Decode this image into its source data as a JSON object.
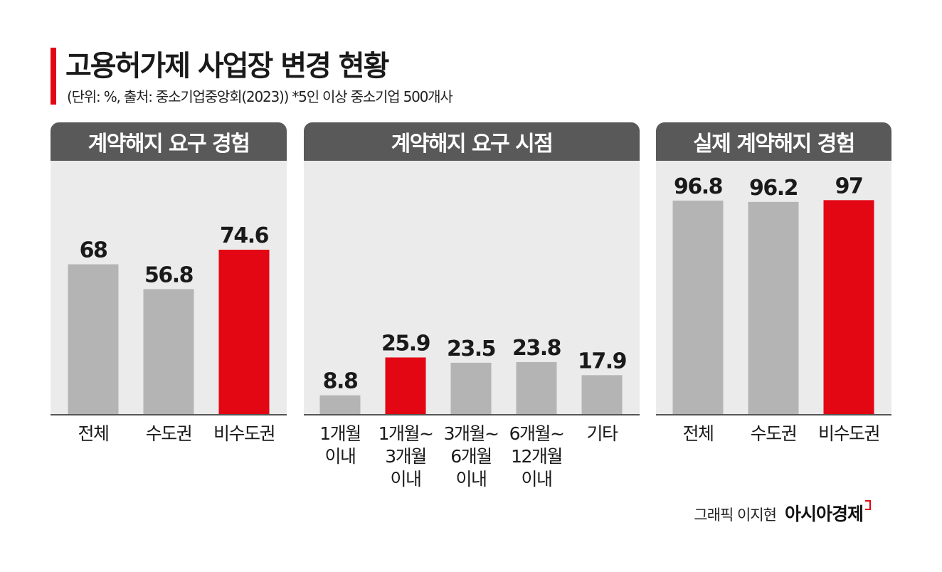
{
  "title": "고용허가제 사업장 변경 현황",
  "subtitle": "(단위: %, 출처: 중소기업중앙회(2023))  *5인 이상 중소기업 500개사",
  "credit": "그래픽 이지현",
  "brand": "아시아경제",
  "colors": {
    "gray_bar": "#b4b4b4",
    "red_bar": "#e30613",
    "panel_bg": "#ebebeb",
    "header_bg": "#595959"
  },
  "chart_data": [
    {
      "type": "bar",
      "title": "계약해지 요구 경험",
      "categories": [
        "전체",
        "수도권",
        "비수도권"
      ],
      "values": [
        68,
        56.8,
        74.6
      ],
      "value_labels": [
        "68",
        "56.8",
        "74.6"
      ],
      "highlight": [
        false,
        false,
        true
      ],
      "ylim": [
        0,
        100
      ]
    },
    {
      "type": "bar",
      "title": "계약해지 요구 시점",
      "categories": [
        "1개월\n이내",
        "1개월~\n3개월\n이내",
        "3개월~\n6개월\n이내",
        "6개월~\n12개월\n이내",
        "기타"
      ],
      "values": [
        8.8,
        25.9,
        23.5,
        23.8,
        17.9
      ],
      "value_labels": [
        "8.8",
        "25.9",
        "23.5",
        "23.8",
        "17.9"
      ],
      "highlight": [
        false,
        true,
        false,
        false,
        false
      ],
      "ylim": [
        0,
        100
      ]
    },
    {
      "type": "bar",
      "title": "실제 계약해지 경험",
      "categories": [
        "전체",
        "수도권",
        "비수도권"
      ],
      "values": [
        96.8,
        96.2,
        97
      ],
      "value_labels": [
        "96.8",
        "96.2",
        "97"
      ],
      "highlight": [
        false,
        false,
        true
      ],
      "ylim": [
        0,
        100
      ]
    }
  ]
}
